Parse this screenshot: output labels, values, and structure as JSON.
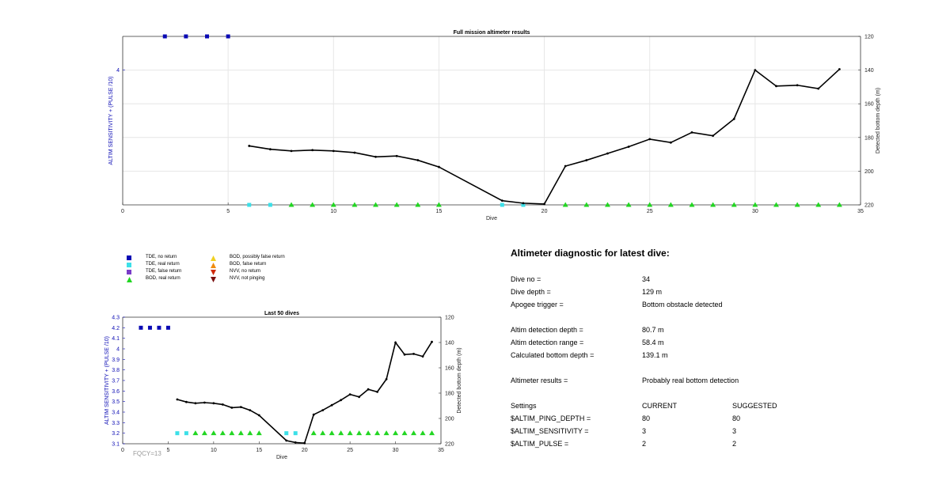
{
  "chart_data": [
    {
      "type": "scatter",
      "title": "Full mission altimeter results",
      "xlabel": "Dive",
      "ylabel_left": "ALTIM SENSITIVITY + (PULSE /10)",
      "ylabel_right": "Detected bottom depth (m)",
      "xlim": [
        0,
        35
      ],
      "x_ticks": [
        0,
        5,
        10,
        15,
        20,
        25,
        30,
        35
      ],
      "ylim_left": [
        2,
        4.5
      ],
      "y_ticks_left": [
        4
      ],
      "ylim_right": [
        220,
        120
      ],
      "y_ticks_right": [
        120,
        140,
        160,
        180,
        200,
        220
      ],
      "grid": "vertical",
      "series": [
        {
          "name": "TDE, no return",
          "axis": "left",
          "marker": "square",
          "color": "#0a0ab4",
          "x": [
            2,
            3,
            4,
            5
          ],
          "y": [
            4.5,
            4.5,
            4.5,
            4.5
          ]
        },
        {
          "name": "TDE, real return",
          "axis": "left",
          "marker": "square",
          "color": "#3ce0e8",
          "x": [
            6,
            7,
            18,
            19
          ],
          "y": [
            2,
            2,
            2,
            2
          ]
        },
        {
          "name": "BOD, real return",
          "axis": "left",
          "marker": "triangle",
          "color": "#22d622",
          "x": [
            8,
            9,
            10,
            11,
            12,
            13,
            14,
            15,
            21,
            22,
            23,
            24,
            25,
            26,
            27,
            28,
            29,
            30,
            31,
            32,
            33,
            34
          ],
          "y": [
            2,
            2,
            2,
            2,
            2,
            2,
            2,
            2,
            2,
            2,
            2,
            2,
            2,
            2,
            2,
            2,
            2,
            2,
            2,
            2,
            2,
            2
          ]
        },
        {
          "name": "Detected bottom depth",
          "axis": "right",
          "marker": "line",
          "color": "#000000",
          "x": [
            6,
            7,
            8,
            9,
            10,
            11,
            12,
            13,
            14,
            15,
            18,
            19,
            20,
            21,
            22,
            23,
            24,
            25,
            26,
            27,
            28,
            29,
            30,
            31,
            32,
            33,
            34
          ],
          "y": [
            185,
            187,
            188,
            187.5,
            188,
            189,
            191.5,
            191,
            193.5,
            197.5,
            217.5,
            219,
            219.5,
            197,
            193.5,
            189.5,
            185.5,
            181,
            183,
            177,
            179,
            169,
            140,
            149.5,
            149,
            151,
            139.5
          ]
        }
      ]
    },
    {
      "type": "scatter",
      "title": "Last 50 dives",
      "xlabel": "Dive",
      "ylabel_left": "ALTIM SENSITIVITY + (PULSE /10)",
      "ylabel_right": "Detected bottom depth (m)",
      "xlim": [
        0,
        35
      ],
      "x_ticks": [
        0,
        5,
        10,
        15,
        20,
        25,
        30,
        35
      ],
      "ylim_left": [
        3.1,
        4.3
      ],
      "y_ticks_left": [
        3.1,
        3.2,
        3.3,
        3.4,
        3.5,
        3.6,
        3.7,
        3.8,
        3.9,
        4,
        4.1,
        4.2,
        4.3
      ],
      "ylim_right": [
        220,
        120
      ],
      "y_ticks_right": [
        120,
        140,
        160,
        180,
        200,
        220
      ],
      "grid": "none",
      "series": [
        {
          "name": "TDE, no return",
          "axis": "left",
          "marker": "square",
          "color": "#0a0ab4",
          "x": [
            2,
            3,
            4,
            5
          ],
          "y": [
            4.2,
            4.2,
            4.2,
            4.2
          ]
        },
        {
          "name": "TDE, real return",
          "axis": "left",
          "marker": "square",
          "color": "#3ce0e8",
          "x": [
            6,
            7,
            18,
            19
          ],
          "y": [
            3.2,
            3.2,
            3.2,
            3.2
          ]
        },
        {
          "name": "BOD, real return",
          "axis": "left",
          "marker": "triangle",
          "color": "#22d622",
          "x": [
            8,
            9,
            10,
            11,
            12,
            13,
            14,
            15,
            21,
            22,
            23,
            24,
            25,
            26,
            27,
            28,
            29,
            30,
            31,
            32,
            33,
            34
          ],
          "y": [
            3.2,
            3.2,
            3.2,
            3.2,
            3.2,
            3.2,
            3.2,
            3.2,
            3.2,
            3.2,
            3.2,
            3.2,
            3.2,
            3.2,
            3.2,
            3.2,
            3.2,
            3.2,
            3.2,
            3.2,
            3.2,
            3.2
          ]
        },
        {
          "name": "Detected bottom depth",
          "axis": "right",
          "marker": "line",
          "color": "#000000",
          "x": [
            6,
            7,
            8,
            9,
            10,
            11,
            12,
            13,
            14,
            15,
            18,
            19,
            20,
            21,
            22,
            23,
            24,
            25,
            26,
            27,
            28,
            29,
            30,
            31,
            32,
            33,
            34
          ],
          "y": [
            185,
            187,
            188,
            187.5,
            188,
            189,
            191.5,
            191,
            193.5,
            197.5,
            217.5,
            219,
            219.5,
            197,
            193.5,
            189.5,
            185.5,
            181,
            183,
            177,
            179,
            169,
            140,
            149.5,
            149,
            151,
            139.5
          ]
        }
      ]
    }
  ],
  "legend": {
    "items": [
      {
        "label": "TDE, no return",
        "marker": "square",
        "color": "#0a0ab4"
      },
      {
        "label": "TDE, real return",
        "marker": "square",
        "color": "#3ce0e8"
      },
      {
        "label": "TDE, false return",
        "marker": "square",
        "color": "#7a3cc8"
      },
      {
        "label": "BOD, real return",
        "marker": "triangle-up",
        "color": "#22d622"
      },
      {
        "label": "BOD, possibly false return",
        "marker": "triangle-up",
        "color": "#f0d020"
      },
      {
        "label": "BOD, false return",
        "marker": "triangle-up",
        "color": "#f08c10"
      },
      {
        "label": "NVV, no return",
        "marker": "triangle-down",
        "color": "#d02a0a"
      },
      {
        "label": "NVV, not pinging",
        "marker": "triangle-down",
        "color": "#7a1010"
      }
    ]
  },
  "fqcy_label": "FQCY=13",
  "diagnostic": {
    "title": "Altimeter diagnostic for latest dive:",
    "dive_no_label": "Dive no =",
    "dive_no": "34",
    "dive_depth_label": "Dive depth =",
    "dive_depth": "129 m",
    "apogee_label": "Apogee trigger =",
    "apogee": "Bottom obstacle detected",
    "det_depth_label": "Altim detection depth =",
    "det_depth": "80.7 m",
    "det_range_label": "Altim detection range =",
    "det_range": "58.4 m",
    "calc_bottom_label": "Calculated bottom depth =",
    "calc_bottom": "139.1 m",
    "results_label": "Altimeter results =",
    "results": "Probably real bottom detection",
    "settings_label": "Settings",
    "current_label": "CURRENT",
    "suggested_label": "SUGGESTED",
    "ping_depth_label": "$ALTIM_PING_DEPTH =",
    "ping_depth_current": "80",
    "ping_depth_suggested": "80",
    "sensitivity_label": "$ALTIM_SENSITIVITY =",
    "sensitivity_current": "3",
    "sensitivity_suggested": "3",
    "pulse_label": "$ALTIM_PULSE =",
    "pulse_current": "2",
    "pulse_suggested": "2"
  },
  "colors": {
    "left_axis": "#0a0ab4",
    "line": "#000000",
    "grid": "#e6e6e6"
  }
}
